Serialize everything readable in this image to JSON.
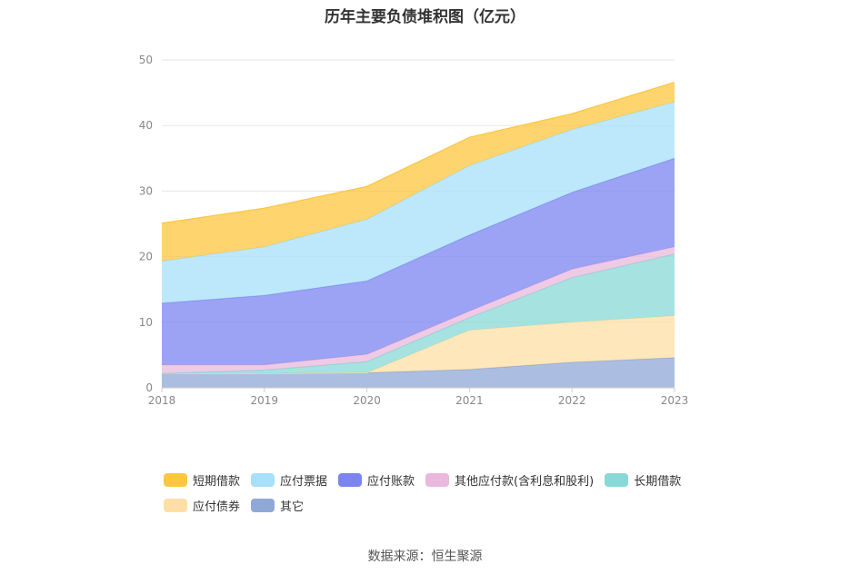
{
  "chart_data": {
    "type": "area",
    "stacked": true,
    "title": "历年主要负债堆积图（亿元）",
    "x": [
      "2018",
      "2019",
      "2020",
      "2021",
      "2022",
      "2023"
    ],
    "ylim": [
      0,
      50
    ],
    "yticks": [
      0,
      10,
      20,
      30,
      40,
      50
    ],
    "grid": true,
    "legend_position": "bottom",
    "series": [
      {
        "name": "其它",
        "color": "#8fa8d8",
        "values": [
          2.2,
          2.2,
          2.3,
          2.8,
          3.9,
          4.6
        ]
      },
      {
        "name": "应付债券",
        "color": "#ffdfa6",
        "values": [
          0,
          0,
          0,
          6.0,
          6.1,
          6.4
        ]
      },
      {
        "name": "长期借款",
        "color": "#88d8d6",
        "values": [
          0,
          0.5,
          1.7,
          1.9,
          6.8,
          9.4
        ]
      },
      {
        "name": "其他应付款(含利息和股利)",
        "color": "#eab8dc",
        "values": [
          1.3,
          0.8,
          1.1,
          1.0,
          1.3,
          1.1
        ]
      },
      {
        "name": "应付账款",
        "color": "#7c84f0",
        "values": [
          9.4,
          10.6,
          11.2,
          11.6,
          11.7,
          13.5
        ]
      },
      {
        "name": "应付票据",
        "color": "#a7e0fa",
        "values": [
          6.4,
          7.4,
          9.4,
          10.6,
          9.6,
          8.6
        ]
      },
      {
        "name": "短期借款",
        "color": "#fdc63f",
        "values": [
          5.8,
          5.9,
          5.0,
          4.3,
          2.4,
          3.0
        ]
      }
    ]
  },
  "legend_order": [
    "短期借款",
    "应付票据",
    "应付账款",
    "其他应付款(含利息和股利)",
    "长期借款",
    "应付债券",
    "其它"
  ],
  "source_note": "数据来源：恒生聚源"
}
